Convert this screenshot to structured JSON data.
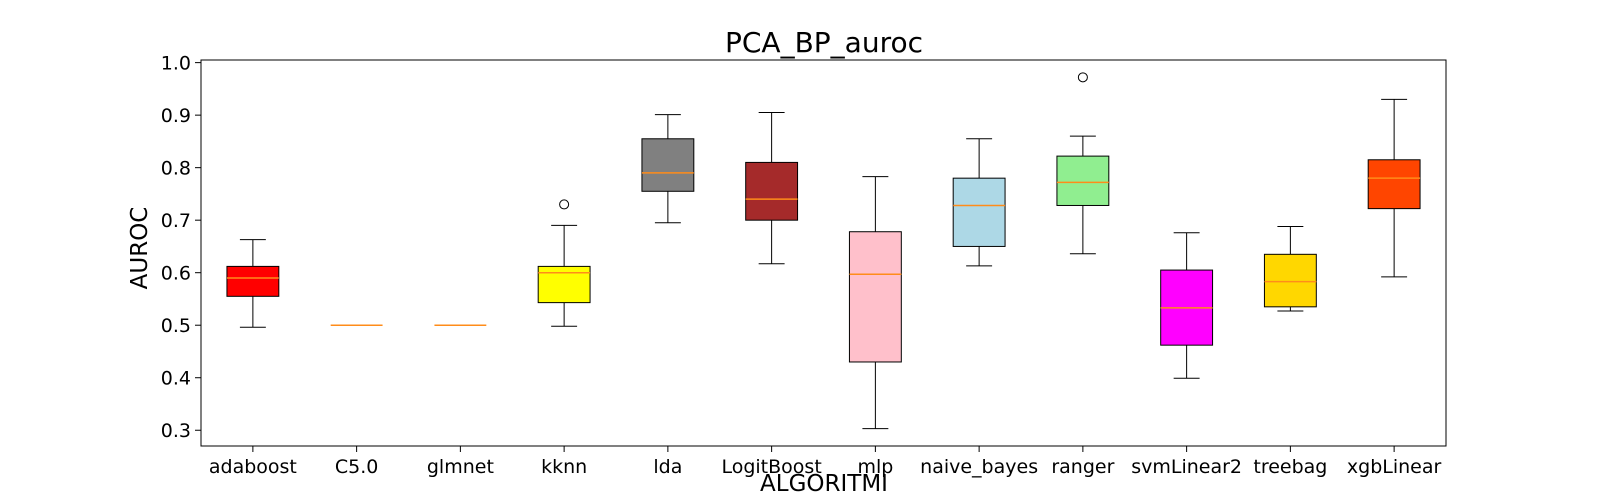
{
  "chart_data": {
    "type": "box",
    "title": "PCA_BP_auroc",
    "xlabel": "ALGORITMI",
    "ylabel": "AUROC",
    "ylim": [
      0.27,
      1.005
    ],
    "yticks": [
      "0.3",
      "0.4",
      "0.5",
      "0.6",
      "0.7",
      "0.8",
      "0.9",
      "1.0"
    ],
    "grid": false,
    "legend": "none",
    "median_color": "#ff8c1a",
    "categories": [
      "adaboost",
      "C5.0",
      "glmnet",
      "kknn",
      "lda",
      "LogitBoost",
      "mlp",
      "naive_bayes",
      "ranger",
      "svmLinear2",
      "treebag",
      "xgbLinear"
    ],
    "boxes": [
      {
        "name": "adaboost",
        "color": "#ff0000",
        "whisker_low": 0.496,
        "q1": 0.555,
        "median": 0.59,
        "q3": 0.612,
        "whisker_high": 0.663,
        "outliers": []
      },
      {
        "name": "C5.0",
        "color": "#ff0000",
        "whisker_low": 0.5,
        "q1": 0.5,
        "median": 0.5,
        "q3": 0.5,
        "whisker_high": 0.5,
        "outliers": []
      },
      {
        "name": "glmnet",
        "color": "#ff0000",
        "whisker_low": 0.5,
        "q1": 0.5,
        "median": 0.5,
        "q3": 0.5,
        "whisker_high": 0.5,
        "outliers": []
      },
      {
        "name": "kknn",
        "color": "#ffff00",
        "whisker_low": 0.498,
        "q1": 0.543,
        "median": 0.6,
        "q3": 0.612,
        "whisker_high": 0.69,
        "outliers": [
          0.73
        ]
      },
      {
        "name": "lda",
        "color": "#808080",
        "whisker_low": 0.695,
        "q1": 0.755,
        "median": 0.79,
        "q3": 0.855,
        "whisker_high": 0.901,
        "outliers": []
      },
      {
        "name": "LogitBoost",
        "color": "#a52a2a",
        "whisker_low": 0.617,
        "q1": 0.7,
        "median": 0.74,
        "q3": 0.81,
        "whisker_high": 0.905,
        "outliers": []
      },
      {
        "name": "mlp",
        "color": "#ffc0cb",
        "whisker_low": 0.303,
        "q1": 0.43,
        "median": 0.597,
        "q3": 0.678,
        "whisker_high": 0.783,
        "outliers": []
      },
      {
        "name": "naive_bayes",
        "color": "#add8e6",
        "whisker_low": 0.613,
        "q1": 0.65,
        "median": 0.728,
        "q3": 0.78,
        "whisker_high": 0.855,
        "outliers": []
      },
      {
        "name": "ranger",
        "color": "#90ee90",
        "whisker_low": 0.636,
        "q1": 0.728,
        "median": 0.772,
        "q3": 0.822,
        "whisker_high": 0.86,
        "outliers": [
          0.972
        ]
      },
      {
        "name": "svmLinear2",
        "color": "#ff00ff",
        "whisker_low": 0.399,
        "q1": 0.462,
        "median": 0.533,
        "q3": 0.605,
        "whisker_high": 0.676,
        "outliers": []
      },
      {
        "name": "treebag",
        "color": "#ffd700",
        "whisker_low": 0.527,
        "q1": 0.535,
        "median": 0.583,
        "q3": 0.635,
        "whisker_high": 0.688,
        "outliers": []
      },
      {
        "name": "xgbLinear",
        "color": "#ff4500",
        "whisker_low": 0.592,
        "q1": 0.722,
        "median": 0.78,
        "q3": 0.815,
        "whisker_high": 0.93,
        "outliers": []
      }
    ]
  }
}
